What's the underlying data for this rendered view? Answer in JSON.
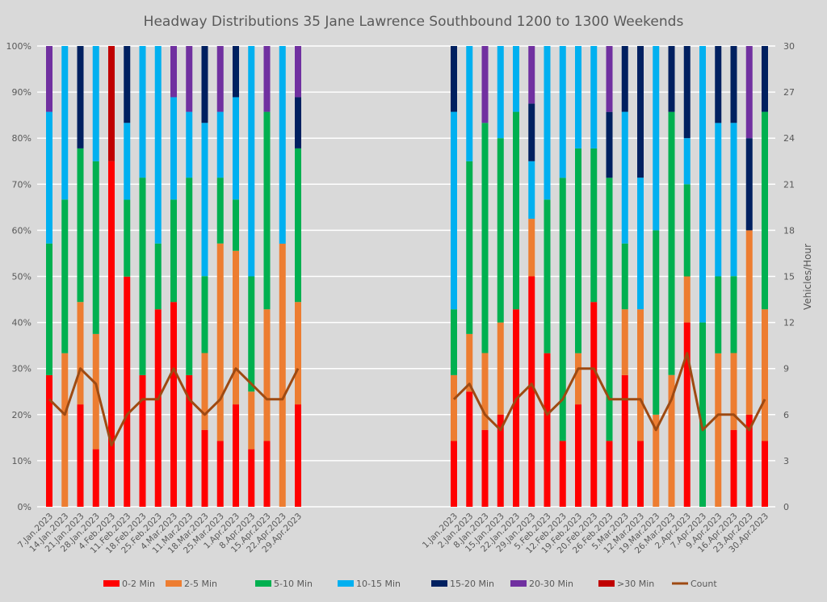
{
  "chart_data": {
    "type": "bar",
    "stacked": true,
    "title": "Headway Distributions 35 Jane  Lawrence Southbound 1200 to 1300 Weekends",
    "ylabel_left": "",
    "ylabel_right": "Vehicles/Hour",
    "ylim_left": [
      0,
      100
    ],
    "ylim_right": [
      0,
      30
    ],
    "yticks_left": [
      "0%",
      "10%",
      "20%",
      "30%",
      "40%",
      "50%",
      "60%",
      "70%",
      "80%",
      "90%",
      "100%"
    ],
    "yticks_right": [
      "0",
      "3",
      "6",
      "9",
      "12",
      "15",
      "18",
      "21",
      "24",
      "27",
      "30"
    ],
    "grid": true,
    "legend_position": "bottom",
    "series_names": [
      "0-2 Min",
      "2-5 Min",
      "5-10 Min",
      "10-15 Min",
      "15-20 Min",
      "20-30 Min",
      ">30 Min"
    ],
    "series_colors": [
      "#ff0000",
      "#ed7d31",
      "#00b050",
      "#00b0f0",
      "#002060",
      "#7030a0",
      "#c00000"
    ],
    "count_series": {
      "name": "Count",
      "color": "#9e4a12"
    },
    "groups": [
      {
        "categories": [
          "7.Jan.2023",
          "14.Jan.2023",
          "21.Jan.2023",
          "28.Jan.2023",
          "4.Feb.2023",
          "11.Feb.2023",
          "18.Feb.2023",
          "25.Feb.2023",
          "4.Mar.2023",
          "11.Mar.2023",
          "18.Mar.2023",
          "25.Mar.2023",
          "1.Apr.2023",
          "8.Apr.2023",
          "15.Apr.2023",
          "22.Apr.2023",
          "29.Apr.2023"
        ],
        "percent": [
          [
            28.6,
            0,
            28.6,
            28.6,
            0,
            14.3,
            0
          ],
          [
            0,
            33.3,
            33.3,
            33.3,
            0,
            0,
            0
          ],
          [
            22.2,
            22.2,
            33.3,
            0,
            22.2,
            0,
            0
          ],
          [
            12.5,
            25,
            37.5,
            25,
            0,
            0,
            0
          ],
          [
            75,
            0,
            0,
            0,
            0,
            0,
            25
          ],
          [
            50,
            0,
            16.7,
            16.7,
            16.7,
            0,
            0
          ],
          [
            28.6,
            0,
            42.9,
            28.6,
            0,
            0,
            0
          ],
          [
            42.9,
            0,
            14.3,
            42.9,
            0,
            0,
            0
          ],
          [
            44.4,
            0,
            22.2,
            22.2,
            0,
            11.1,
            0
          ],
          [
            28.6,
            0,
            42.9,
            14.3,
            0,
            14.3,
            0
          ],
          [
            16.7,
            16.7,
            16.7,
            33.3,
            16.7,
            0,
            0
          ],
          [
            14.3,
            42.9,
            14.3,
            14.3,
            0,
            14.3,
            0
          ],
          [
            22.2,
            33.3,
            11.1,
            22.2,
            11.1,
            0,
            0
          ],
          [
            12.5,
            12.5,
            25,
            50,
            0,
            0,
            0
          ],
          [
            14.3,
            28.6,
            42.9,
            0,
            0,
            14.3,
            0
          ],
          [
            0,
            57.1,
            0,
            42.9,
            0,
            0,
            0
          ],
          [
            22.2,
            22.2,
            33.3,
            0,
            11.1,
            11.1,
            0
          ]
        ],
        "count": [
          7,
          6,
          9,
          8,
          4,
          6,
          7,
          7,
          9,
          7,
          6,
          7,
          9,
          8,
          7,
          7,
          9
        ]
      },
      {
        "categories": [
          "1.Jan.2023",
          "2.Jan.2023",
          "8.Jan.2023",
          "15.Jan.2023",
          "22.Jan.2023",
          "29.Jan.2023",
          "5.Feb.2023",
          "12.Feb.2023",
          "19.Feb.2023",
          "20.Feb.2023",
          "26.Feb.2023",
          "5.Mar.2023",
          "12.Mar.2023",
          "19.Mar.2023",
          "26.Mar.2023",
          "2.Apr.2023",
          "7.Apr.2023",
          "9.Apr.2023",
          "16.Apr.2023",
          "23.Apr.2023",
          "30.Apr.2023"
        ],
        "percent": [
          [
            14.3,
            14.3,
            14.3,
            42.9,
            14.3,
            0,
            0
          ],
          [
            25,
            12.5,
            37.5,
            25,
            0,
            0,
            0
          ],
          [
            16.7,
            16.7,
            50,
            0,
            0,
            16.7,
            0
          ],
          [
            20,
            20,
            40,
            20,
            0,
            0,
            0
          ],
          [
            42.9,
            0,
            42.9,
            14.3,
            0,
            0,
            0
          ],
          [
            50,
            12.5,
            0,
            12.5,
            12.5,
            12.5,
            0
          ],
          [
            33.3,
            0,
            33.3,
            33.3,
            0,
            0,
            0
          ],
          [
            14.3,
            0,
            57.1,
            28.6,
            0,
            0,
            0
          ],
          [
            22.2,
            11.1,
            44.4,
            22.2,
            0,
            0,
            0
          ],
          [
            44.4,
            0,
            33.3,
            22.2,
            0,
            0,
            0
          ],
          [
            14.3,
            0,
            57.1,
            0,
            14.3,
            14.3,
            0
          ],
          [
            28.6,
            14.3,
            14.3,
            28.6,
            14.3,
            0,
            0
          ],
          [
            14.3,
            28.6,
            0,
            28.6,
            28.6,
            0,
            0
          ],
          [
            0,
            20,
            40,
            40,
            0,
            0,
            0
          ],
          [
            0,
            28.6,
            57.1,
            0,
            14.3,
            0,
            0
          ],
          [
            40,
            10,
            20,
            10,
            20,
            0,
            0
          ],
          [
            0,
            0,
            40,
            60,
            0,
            0,
            0
          ],
          [
            0,
            33.3,
            16.7,
            33.3,
            16.7,
            0,
            0
          ],
          [
            16.7,
            16.7,
            16.7,
            33.3,
            16.7,
            0,
            0
          ],
          [
            20,
            40,
            0,
            0,
            20,
            20,
            0
          ],
          [
            14.3,
            28.6,
            42.9,
            0,
            14.3,
            0,
            0
          ]
        ],
        "count": [
          7,
          8,
          6,
          5,
          7,
          8,
          6,
          7,
          9,
          9,
          7,
          7,
          7,
          5,
          7,
          10,
          5,
          6,
          6,
          5,
          7
        ]
      }
    ]
  }
}
